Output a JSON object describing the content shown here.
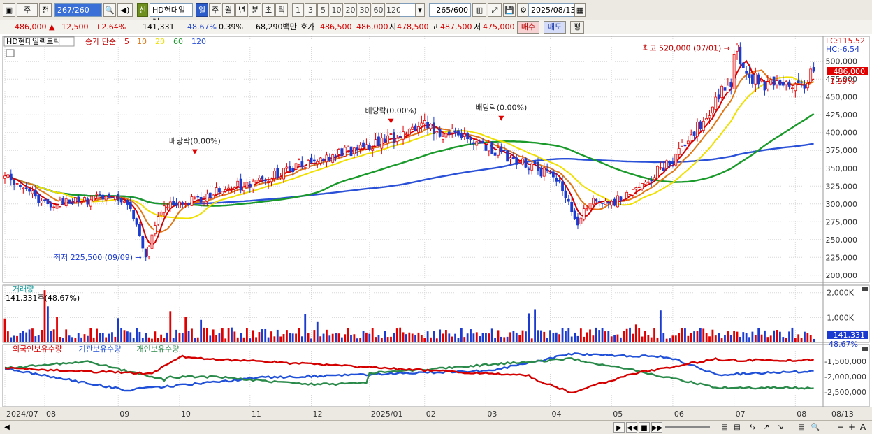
{
  "toolbar": {
    "period_select": "주",
    "prev_label": "전",
    "range_value": "267/260",
    "stock_name": "HD현대일렉",
    "new_label": "신",
    "tabs": [
      "일",
      "주",
      "월",
      "년",
      "분",
      "초",
      "틱"
    ],
    "interval_buttons": [
      "1",
      "3",
      "5",
      "10",
      "20",
      "30",
      "60",
      "120"
    ],
    "count_value": "265",
    "count_total": "/600",
    "date_value": "2025/08/13"
  },
  "quote": {
    "price": "486,000",
    "change": "12,500",
    "change_pct": "+2.64%",
    "volume": "141,331",
    "volume_pct": "48.67%",
    "turnover_pct": "0.39%",
    "amount": "68,290백만",
    "hoga_label": "호가",
    "ask": "486,500",
    "bid": "486,000",
    "open_label": "시",
    "open": "478,500",
    "high_label": "고",
    "high": "487,500",
    "low_label": "저",
    "low": "475,000",
    "buy_label": "매수",
    "sell_label": "매도",
    "avg_label": "평"
  },
  "chart_data": [
    {
      "type": "candlestick",
      "title": "HD현대일렉트릭",
      "legend": {
        "prefix": "종가 단순",
        "series": [
          {
            "name": "5",
            "color": "#d40000"
          },
          {
            "name": "10",
            "color": "#e07818"
          },
          {
            "name": "20",
            "color": "#f0e000"
          },
          {
            "name": "60",
            "color": "#1a9a2a"
          },
          {
            "name": "120",
            "color": "#2a50d8"
          }
        ]
      },
      "x_labels": [
        "2024/07",
        "08",
        "09",
        "10",
        "11",
        "12",
        "2025/01",
        "02",
        "03",
        "04",
        "05",
        "06",
        "07",
        "08",
        "08/13"
      ],
      "ylim": [
        190000,
        535000
      ],
      "y_ticks": [
        200000,
        225000,
        250000,
        275000,
        300000,
        325000,
        350000,
        375000,
        400000,
        425000,
        450000,
        475000,
        500000
      ],
      "y_tick_labels": [
        "200,000",
        "225,000",
        "250,000",
        "275,000",
        "300,000",
        "325,000",
        "350,000",
        "375,000",
        "400,000",
        "425,000",
        "450,000",
        "475,000",
        "500,000"
      ],
      "current_price_label": "486,000",
      "current_price": 486000,
      "current_pct": "1.99%",
      "lc_label": "LC:115.52",
      "hc_label": "HC:-6.54",
      "annotations": {
        "high": "최고 520,000 (07/01)",
        "low": "최저 225,500 (09/09)",
        "dividend": [
          "배당락(0.00%)",
          "배당락(0.00%)",
          "배당락(0.00%)"
        ]
      },
      "close_series": [
        {
          "month": "2024/07",
          "start": 340000,
          "end": 300000
        },
        {
          "month": "08",
          "start": 300000,
          "end": 310000
        },
        {
          "month": "09",
          "start": 310000,
          "end": 300000,
          "min": 225500
        },
        {
          "month": "10",
          "start": 300000,
          "end": 330000
        },
        {
          "month": "11",
          "start": 330000,
          "end": 360000
        },
        {
          "month": "12",
          "start": 360000,
          "end": 380000
        },
        {
          "month": "2025/01",
          "start": 380000,
          "end": 410000
        },
        {
          "month": "02",
          "start": 410000,
          "end": 380000
        },
        {
          "month": "03",
          "start": 380000,
          "end": 340000
        },
        {
          "month": "04",
          "start": 340000,
          "end": 300000,
          "min": 270000
        },
        {
          "month": "05",
          "start": 300000,
          "end": 360000
        },
        {
          "month": "06",
          "start": 360000,
          "end": 480000
        },
        {
          "month": "07",
          "start": 480000,
          "end": 460000,
          "max": 520000
        },
        {
          "month": "08",
          "start": 460000,
          "end": 486000
        }
      ]
    },
    {
      "type": "bar",
      "title": "거래량",
      "volume_label": "141,331주(48.67%)",
      "y_tick_labels": [
        "2,000K",
        "1,000K"
      ],
      "y_ticks": [
        2000000,
        1000000
      ],
      "ylim": [
        0,
        2300000
      ],
      "current_label": "141,331",
      "current_pct": "48.67%"
    },
    {
      "type": "line",
      "series": [
        {
          "name": "외국인보유수량",
          "color": "#d40000"
        },
        {
          "name": "기관보유수량",
          "color": "#2050d8"
        },
        {
          "name": "개인보유수량",
          "color": "#2a8a4a"
        }
      ],
      "y_tick_labels": [
        "-1,500,000",
        "-2,000,000",
        "-2,500,000"
      ],
      "y_ticks": [
        -1500000,
        -2000000,
        -2500000
      ]
    }
  ],
  "bottom": {
    "nav_labels": [
      "▶",
      "◀◀",
      "■",
      "▶▶"
    ],
    "zoom_labels": [
      "−",
      "+",
      "A"
    ]
  }
}
